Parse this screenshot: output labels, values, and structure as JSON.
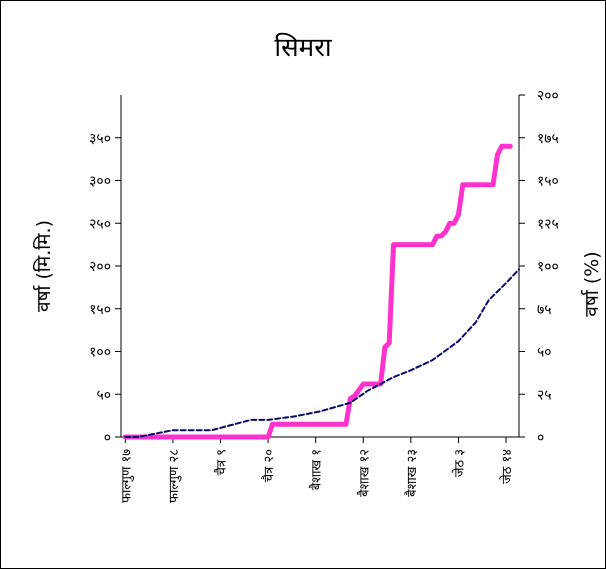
{
  "chart_data": {
    "type": "line",
    "title": "सिमरा",
    "ylabel": "वर्षा (मि.मि.)",
    "y2label": "वर्षा (%)",
    "ylim": [
      0,
      400
    ],
    "y2lim": [
      0,
      200
    ],
    "y_ticks": [
      0,
      50,
      100,
      150,
      200,
      250,
      300,
      350
    ],
    "y_tick_labels": [
      "०",
      "५०",
      "१००",
      "१५०",
      "२००",
      "२५०",
      "३००",
      "३५०"
    ],
    "y2_ticks": [
      0,
      25,
      50,
      75,
      100,
      125,
      150,
      175,
      200
    ],
    "y2_tick_labels": [
      "०",
      "२५",
      "५०",
      "७५",
      "१००",
      "१२५",
      "१५०",
      "१७५",
      "२००"
    ],
    "x_ticks": [
      0,
      11,
      22,
      33,
      44,
      55,
      66,
      77,
      88
    ],
    "x_tick_labels": [
      "फाल्गुण १७",
      "फाल्गुण २८",
      "चैत्र ९",
      "चैत्र २०",
      "बैशाख १",
      "बैशाख १२",
      "बैशाख २३",
      "जेठ ३",
      "जेठ १४"
    ],
    "xlim": [
      -1,
      91
    ],
    "grid": false,
    "legend": "none",
    "series": [
      {
        "axis": "left",
        "color": "#ff33cc",
        "style": "solid",
        "x": [
          0,
          33,
          34,
          51,
          52,
          53,
          55,
          56,
          58,
          59,
          60,
          61,
          62,
          71,
          72,
          73,
          74,
          75,
          76,
          77,
          78,
          80,
          81,
          85,
          86,
          87,
          88,
          89
        ],
        "y": [
          0,
          0,
          15,
          15,
          45,
          48,
          62,
          62,
          62,
          62,
          105,
          110,
          225,
          225,
          235,
          235,
          240,
          250,
          250,
          260,
          295,
          295,
          295,
          295,
          330,
          340,
          340,
          340
        ]
      },
      {
        "axis": "right",
        "color": "#0a0a6e",
        "style": "dashed",
        "x": [
          0,
          3,
          6,
          11,
          20,
          26,
          29,
          33,
          39,
          45,
          52,
          56,
          59,
          62,
          66,
          71,
          77,
          81,
          84,
          88,
          91
        ],
        "y": [
          0,
          0,
          1.5,
          4,
          4,
          8,
          10,
          10,
          12,
          15,
          20,
          27,
          31,
          35,
          39,
          45,
          56,
          67,
          80,
          90,
          98
        ]
      }
    ]
  }
}
